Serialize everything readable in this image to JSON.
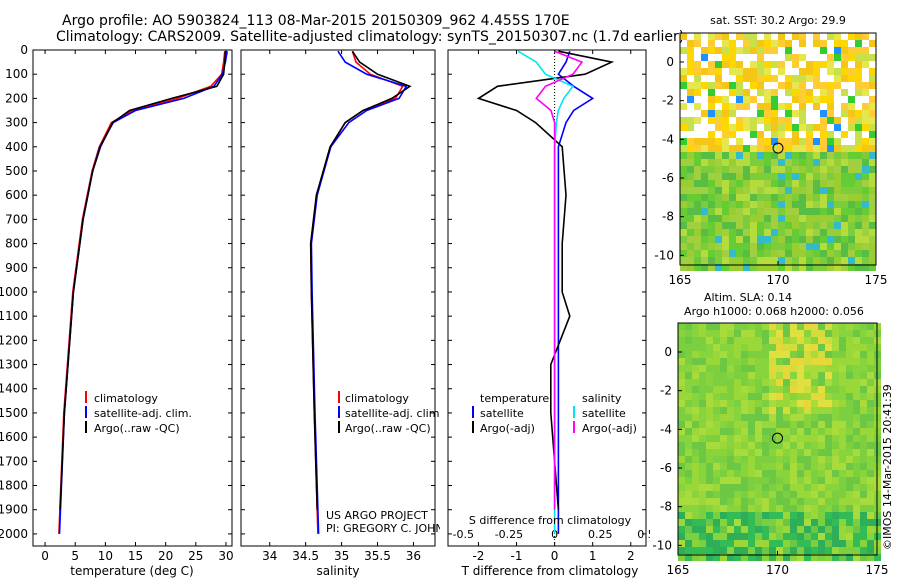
{
  "header": {
    "line1": "Argo profile: AO 5903824_113 08-Mar-2015 20150309_962 4.455S 170E",
    "line2": "Climatology: CARS2009. Satellite-adjusted climatology: synTS_20150307.nc (1.7d earlier)"
  },
  "credits": {
    "project": "US ARGO PROJECT",
    "pi": "PI: GREGORY C. JOHNSON",
    "imos": "©IMOS 14-Mar-2015 20:41:39"
  },
  "colors": {
    "climatology": "#ff0000",
    "satellite": "#0000ff",
    "argo": "#000000",
    "salinity_satellite": "#00e5ee",
    "salinity_argo": "#ff00ff"
  },
  "chart_data": [
    {
      "type": "line",
      "xlabel": "temperature (deg C)",
      "ylabel": "",
      "xlim": [
        -2,
        31
      ],
      "ylim": [
        2050,
        0
      ],
      "x_ticks": [
        0,
        5,
        10,
        15,
        20,
        25,
        30
      ],
      "y_ticks": [
        0,
        100,
        200,
        300,
        400,
        500,
        600,
        700,
        800,
        900,
        1000,
        1100,
        1200,
        1300,
        1400,
        1500,
        1600,
        1700,
        1800,
        1900,
        2000
      ],
      "legend": [
        "climatology",
        "satellite-adj. clim.",
        "Argo(..raw -QC)"
      ],
      "series": [
        {
          "name": "climatology",
          "depth": [
            5,
            50,
            100,
            150,
            200,
            250,
            300,
            400,
            500,
            700,
            1000,
            1500,
            2000
          ],
          "values": [
            29.8,
            29.6,
            29.3,
            27.5,
            22,
            14.5,
            11,
            9,
            7.8,
            6.2,
            4.6,
            3.1,
            2.3
          ]
        },
        {
          "name": "satellite-adj. clim.",
          "depth": [
            5,
            50,
            100,
            150,
            200,
            250,
            300,
            400,
            500,
            700,
            1000,
            1500,
            2000
          ],
          "values": [
            30.2,
            29.9,
            29.4,
            28,
            23,
            15,
            11.3,
            9.1,
            7.9,
            6.3,
            4.7,
            3.2,
            2.4
          ]
        },
        {
          "name": "Argo(..raw -QC)",
          "depth": [
            5,
            50,
            100,
            150,
            200,
            250,
            300,
            400,
            500,
            700,
            1000,
            1500,
            1900
          ],
          "values": [
            29.9,
            29.8,
            29.6,
            28.5,
            21,
            14,
            11.2,
            9.2,
            7.9,
            6.3,
            4.7,
            3.2,
            2.5
          ]
        }
      ]
    },
    {
      "type": "line",
      "xlabel": "salinity",
      "xlim": [
        33.6,
        36.3
      ],
      "ylim": [
        2050,
        0
      ],
      "x_ticks": [
        34,
        34.5,
        35,
        35.5,
        36
      ],
      "legend": [
        "climatology",
        "satellite-adj. clim.",
        "Argo(..raw -QC)"
      ],
      "series": [
        {
          "name": "climatology",
          "depth": [
            5,
            50,
            100,
            150,
            200,
            250,
            300,
            400,
            600,
            800,
            1000,
            1500,
            2000
          ],
          "values": [
            35.15,
            35.2,
            35.4,
            35.85,
            35.75,
            35.3,
            35.05,
            34.85,
            34.65,
            34.57,
            34.58,
            34.62,
            34.67
          ]
        },
        {
          "name": "satellite-adj. clim.",
          "depth": [
            5,
            50,
            100,
            150,
            200,
            250,
            300,
            400,
            600,
            800,
            1000,
            1500,
            2000
          ],
          "values": [
            34.95,
            35.05,
            35.35,
            35.9,
            35.8,
            35.35,
            35.1,
            34.85,
            34.66,
            34.58,
            34.59,
            34.63,
            34.68
          ]
        },
        {
          "name": "Argo(..raw -QC)",
          "depth": [
            5,
            50,
            100,
            150,
            200,
            250,
            300,
            400,
            600,
            800,
            1000,
            1500,
            1900
          ],
          "values": [
            35.15,
            35.25,
            35.5,
            35.95,
            35.7,
            35.3,
            35.05,
            34.84,
            34.65,
            34.57,
            34.58,
            34.62,
            34.66
          ]
        }
      ]
    },
    {
      "type": "line",
      "xlabel": "T difference from climatology",
      "xlabel_top": "S difference from climatology",
      "xlim": [
        -2.8,
        2.4
      ],
      "ylim": [
        2050,
        0
      ],
      "x_ticks": [
        -2,
        -1,
        0,
        1,
        2
      ],
      "x_ticks_top": [
        -0.5,
        -0.25,
        0,
        0.25,
        0.5
      ],
      "legend_titles": [
        "temperature",
        "salinity"
      ],
      "legend": [
        "satellite",
        "Argo(-adj)",
        "satellite",
        "Argo(-adj)"
      ],
      "series": [
        {
          "name": "satellite",
          "variable": "temperature",
          "depth": [
            5,
            50,
            100,
            150,
            200,
            250,
            300,
            400,
            600,
            800,
            1000,
            1500,
            2000
          ],
          "values": [
            0.4,
            0.3,
            0.1,
            0.5,
            1,
            0.5,
            0.3,
            0.1,
            0.1,
            0.1,
            0.1,
            0.1,
            0.1
          ]
        },
        {
          "name": "Argo(-adj)",
          "variable": "temperature",
          "depth": [
            5,
            50,
            100,
            150,
            200,
            250,
            300,
            400,
            600,
            800,
            1000,
            1100,
            1300,
            1500,
            1900
          ],
          "values": [
            0.1,
            1.5,
            0.8,
            -1.5,
            -2,
            -1,
            -0.5,
            0.2,
            0.3,
            0.2,
            0.2,
            0.4,
            -0.1,
            -0.1,
            0.1
          ]
        },
        {
          "name": "satellite",
          "variable": "salinity",
          "depth": [
            5,
            50,
            100,
            150,
            200,
            250,
            300,
            400,
            600,
            800,
            1000,
            1500,
            2000
          ],
          "values": [
            -0.2,
            -0.1,
            -0.05,
            0.1,
            0.05,
            0.02,
            0.01,
            0,
            0,
            0,
            0,
            0,
            0
          ]
        },
        {
          "name": "Argo(-adj)",
          "variable": "salinity",
          "depth": [
            5,
            50,
            100,
            150,
            200,
            250,
            300,
            400,
            600,
            800,
            1000,
            1500,
            1900
          ],
          "values": [
            0,
            0.15,
            0.1,
            -0.05,
            -0.1,
            -0.02,
            0,
            0,
            0,
            0,
            0,
            0,
            0
          ]
        }
      ]
    },
    {
      "type": "heatmap",
      "title": "sat. SST: 30.2 Argo: 29.9",
      "xlim": [
        165,
        175
      ],
      "ylim": [
        -10.5,
        1.5
      ],
      "x_ticks": [
        165,
        170,
        175
      ],
      "y_ticks": [
        0,
        -2,
        -4,
        -6,
        -8,
        -10
      ],
      "marker": {
        "lon": 170,
        "lat": -4.455
      }
    },
    {
      "type": "heatmap",
      "title": "Altim. SLA: 0.14",
      "subtitle": "Argo h1000: 0.068 h2000: 0.056",
      "xlim": [
        165,
        175
      ],
      "ylim": [
        -10.5,
        1.5
      ],
      "x_ticks": [
        165,
        170,
        175
      ],
      "y_ticks": [
        0,
        -2,
        -4,
        -6,
        -8,
        -10
      ],
      "marker": {
        "lon": 170,
        "lat": -4.455
      }
    }
  ]
}
